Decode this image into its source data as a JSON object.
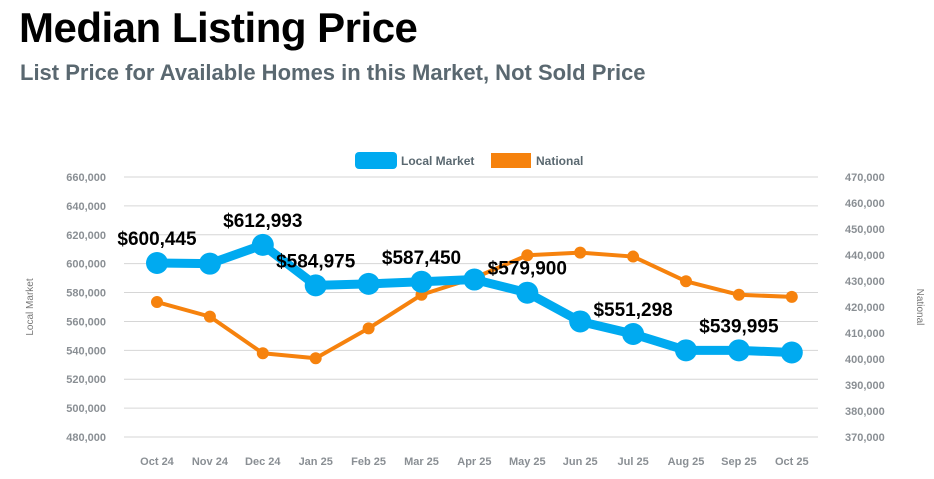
{
  "header": {
    "title": "Median Listing Price",
    "subtitle": "List Price for Available Homes in this Market, Not Sold Price"
  },
  "chart_data": {
    "type": "line",
    "categories": [
      "Oct 24",
      "Nov 24",
      "Dec 24",
      "Jan 25",
      "Feb 25",
      "Mar 25",
      "Apr 25",
      "May 25",
      "Jun 25",
      "Jul 25",
      "Aug 25",
      "Sep 25",
      "Oct 25"
    ],
    "series": [
      {
        "name": "Local Market",
        "axis": "left",
        "color": "#00aaf0",
        "values": [
          600445,
          600000,
          612993,
          584975,
          586000,
          587450,
          589000,
          579900,
          560000,
          551298,
          540000,
          539995,
          538500
        ],
        "labels": [
          "$600,445",
          null,
          "$612,993",
          "$584,975",
          null,
          "$587,450",
          null,
          "$579,900",
          null,
          "$551,298",
          null,
          "$539,995",
          null
        ]
      },
      {
        "name": "National",
        "axis": "right",
        "color": "#f6820d",
        "values": [
          421900,
          416300,
          402200,
          400300,
          411800,
          424700,
          431200,
          439900,
          440900,
          439400,
          429900,
          424700,
          423900
        ]
      }
    ],
    "left_axis": {
      "label": "Local Market",
      "ylim": [
        480000,
        660000
      ],
      "ticks": [
        "660,000",
        "640,000",
        "620,000",
        "600,000",
        "580,000",
        "560,000",
        "540,000",
        "520,000",
        "500,000",
        "480,000"
      ]
    },
    "right_axis": {
      "label": "National",
      "ylim": [
        370000,
        470000
      ],
      "ticks": [
        "470,000",
        "460,000",
        "450,000",
        "440,000",
        "430,000",
        "420,000",
        "410,000",
        "400,000",
        "390,000",
        "380,000",
        "370,000"
      ]
    },
    "grid": true,
    "legend": "top-center"
  }
}
